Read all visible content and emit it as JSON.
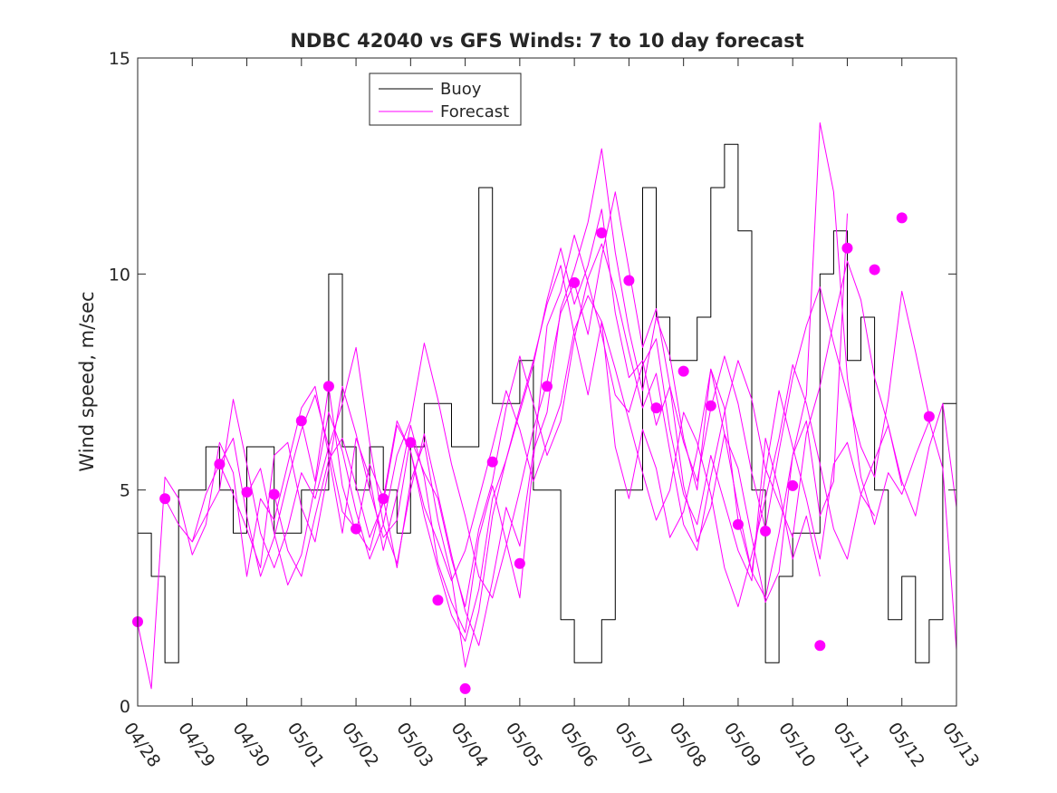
{
  "chart_data": {
    "type": "line",
    "title": "NDBC 42040 vs GFS Winds: 7 to 10 day forecast",
    "xlabel": "",
    "ylabel": "Wind speed, m/sec",
    "xlim": [
      "04/28",
      "05/13"
    ],
    "ylim": [
      0,
      15
    ],
    "x_ticks": [
      "04/28",
      "04/29",
      "04/30",
      "05/01",
      "05/02",
      "05/03",
      "05/04",
      "05/05",
      "05/06",
      "05/07",
      "05/08",
      "05/09",
      "05/10",
      "05/11",
      "05/12",
      "05/13"
    ],
    "y_ticks": [
      0,
      5,
      10,
      15
    ],
    "grid": false,
    "legend_position": "top-center",
    "legend": [
      {
        "name": "Buoy",
        "color": "#000000"
      },
      {
        "name": "Forecast",
        "color": "#ff00ff"
      }
    ],
    "forecast_markers": {
      "x": [
        0,
        0.5,
        1.5,
        2,
        2.5,
        3,
        3.5,
        4,
        4.5,
        5,
        5.5,
        6,
        6.5,
        7,
        7.5,
        8,
        8.5,
        9,
        9.5,
        10,
        10.5,
        11,
        11.5,
        12,
        12.5,
        13,
        13.5,
        14,
        14.5
      ],
      "values": [
        1.95,
        4.8,
        5.6,
        4.95,
        4.9,
        6.6,
        7.4,
        4.1,
        4.8,
        6.1,
        2.45,
        0.4,
        5.65,
        3.3,
        7.4,
        9.8,
        10.95,
        9.85,
        6.9,
        7.75,
        6.95,
        4.2,
        4.05,
        5.1,
        1.4,
        10.6,
        10.1,
        11.3,
        6.7
      ]
    },
    "series": [
      {
        "name": "Buoy",
        "x": [
          0,
          0.25,
          0.5,
          0.75,
          1,
          1.25,
          1.5,
          1.75,
          2,
          2.25,
          2.5,
          2.75,
          3,
          3.25,
          3.5,
          3.75,
          4,
          4.25,
          4.5,
          4.75,
          5,
          5.25,
          5.5,
          5.75,
          6,
          6.25,
          6.5,
          6.75,
          7,
          7.25,
          7.5,
          7.75,
          8,
          8.25,
          8.5,
          8.75,
          9,
          9.25,
          9.5,
          9.75,
          10,
          10.25,
          10.5,
          10.75,
          11,
          11.25,
          11.5,
          11.75,
          12,
          12.25,
          12.5,
          12.75,
          13,
          13.25,
          13.5,
          13.75,
          14,
          14.25,
          14.5,
          14.75,
          15
        ],
        "values": [
          4,
          3,
          1,
          5,
          5,
          6,
          5,
          4,
          6,
          6,
          4,
          4,
          5,
          5,
          10,
          6,
          5,
          6,
          5,
          4,
          6,
          7,
          7,
          6,
          6,
          12,
          7,
          7,
          8,
          5,
          5,
          2,
          1,
          1,
          2,
          5,
          5,
          12,
          9,
          8,
          8,
          9,
          12,
          13,
          11,
          5,
          1,
          3,
          4,
          4,
          10,
          11,
          8,
          9,
          5,
          2,
          3,
          1,
          2,
          7,
          4
        ]
      },
      {
        "name": "",
        "x": [
          0,
          0.25,
          0.5,
          0.75,
          1,
          1.25,
          1.5,
          1.75,
          2,
          2.25,
          2.5,
          2.75,
          3,
          3.25,
          3.5,
          3.75,
          4,
          4.25,
          4.5,
          4.75,
          5,
          5.25,
          5.5,
          5.75,
          6,
          6.25,
          6.5,
          6.75,
          7,
          7.25,
          7.5,
          7.75,
          8,
          8.25,
          8.5,
          8.75,
          9,
          9.25,
          9.5,
          9.75,
          10,
          10.25,
          10.5,
          10.75,
          11,
          11.25,
          11.5,
          11.75,
          12,
          12.25,
          12.5
        ],
        "values": [
          1.9,
          0.4,
          5.3,
          4.8,
          3.5,
          4.2,
          6.1,
          5.4,
          3.0,
          4.8,
          4.3,
          5.6,
          6.9,
          7.4,
          5.8,
          4.0,
          6.2,
          5.3,
          3.6,
          4.9,
          6.5,
          5.3,
          3.3,
          2.4,
          1.7,
          3.9,
          5.1,
          3.8,
          2.5,
          5.7,
          8.8,
          9.6,
          10.9,
          9.8,
          8.6,
          7.2,
          6.8,
          7.9,
          8.5,
          6.4,
          4.9,
          4.2,
          5.8,
          4.7,
          3.6,
          2.9,
          6.2,
          5.0,
          3.4,
          4.4,
          3.0
        ]
      },
      {
        "name": "",
        "x": [
          0.5,
          0.75,
          1,
          1.25,
          1.5,
          1.75,
          2,
          2.25,
          2.5,
          2.75,
          3,
          3.25,
          3.5,
          3.75,
          4,
          4.25,
          4.5,
          4.75,
          5,
          5.25,
          5.5,
          5.75,
          6,
          6.25,
          6.5,
          6.75,
          7,
          7.25,
          7.5,
          7.75,
          8,
          8.25,
          8.5,
          8.75,
          9,
          9.25,
          9.5,
          9.75,
          10,
          10.25,
          10.5,
          10.75,
          11,
          11.25,
          11.5,
          11.75,
          12,
          12.25,
          12.5,
          12.75,
          13
        ],
        "values": [
          4.8,
          4.2,
          3.8,
          4.9,
          5.6,
          6.2,
          4.4,
          3.0,
          3.9,
          5.2,
          6.4,
          7.2,
          6.0,
          4.5,
          4.1,
          3.6,
          4.8,
          6.6,
          5.9,
          4.4,
          3.2,
          2.1,
          1.5,
          2.7,
          4.8,
          5.7,
          6.8,
          7.9,
          9.4,
          10.6,
          9.3,
          10.2,
          11.5,
          9.1,
          7.6,
          8.0,
          6.5,
          7.4,
          5.1,
          3.8,
          4.6,
          6.3,
          5.5,
          3.9,
          2.4,
          3.1,
          5.8,
          6.6,
          4.4,
          5.2,
          11.4
        ]
      },
      {
        "name": "",
        "x": [
          1,
          1.25,
          1.5,
          1.75,
          2,
          2.25,
          2.5,
          2.75,
          3,
          3.25,
          3.5,
          3.75,
          4,
          4.25,
          4.5,
          4.75,
          5,
          5.25,
          5.5,
          5.75,
          6,
          6.25,
          6.5,
          6.75,
          7,
          7.25,
          7.5,
          7.75,
          8,
          8.25,
          8.5,
          8.75,
          9,
          9.25,
          9.5,
          9.75,
          10,
          10.25,
          10.5,
          10.75,
          11,
          11.25,
          11.5,
          11.75,
          12,
          12.25,
          12.5,
          12.75,
          13,
          13.25,
          13.5
        ],
        "values": [
          3.8,
          4.4,
          5.0,
          7.1,
          5.6,
          4.0,
          3.2,
          4.1,
          5.4,
          4.8,
          6.0,
          7.0,
          8.3,
          6.1,
          4.2,
          3.3,
          5.0,
          6.3,
          4.9,
          3.5,
          2.2,
          1.4,
          2.9,
          4.6,
          3.7,
          5.9,
          6.8,
          9.2,
          10.1,
          11.2,
          12.9,
          10.5,
          8.7,
          7.3,
          9.0,
          8.1,
          6.2,
          5.0,
          7.8,
          6.9,
          4.3,
          3.1,
          5.4,
          7.3,
          6.0,
          4.8,
          3.4,
          5.6,
          6.1,
          4.9,
          4.4
        ]
      },
      {
        "name": "",
        "x": [
          1.5,
          1.75,
          2,
          2.25,
          2.5,
          2.75,
          3,
          3.25,
          3.5,
          3.75,
          4,
          4.25,
          4.5,
          4.75,
          5,
          5.25,
          5.5,
          5.75,
          6,
          6.25,
          6.5,
          6.75,
          7,
          7.25,
          7.5,
          7.75,
          8,
          8.25,
          8.5,
          8.75,
          9,
          9.25,
          9.5,
          9.75,
          10,
          10.25,
          10.5,
          10.75,
          11,
          11.25,
          11.5,
          11.75,
          12,
          12.25,
          12.5,
          12.75,
          13,
          13.25,
          13.5,
          13.75,
          14
        ],
        "values": [
          5.6,
          4.9,
          4.1,
          3.2,
          5.8,
          6.1,
          4.6,
          3.8,
          5.5,
          7.4,
          6.3,
          5.0,
          3.9,
          4.3,
          6.2,
          5.4,
          4.8,
          3.4,
          2.3,
          4.1,
          5.2,
          6.9,
          8.1,
          7.0,
          5.8,
          6.6,
          8.5,
          9.9,
          10.7,
          9.6,
          8.2,
          6.9,
          7.7,
          5.9,
          4.2,
          3.6,
          5.3,
          6.8,
          8.0,
          7.1,
          5.5,
          4.7,
          3.9,
          6.3,
          7.4,
          8.9,
          10.3,
          9.4,
          7.6,
          6.5,
          5.1
        ]
      },
      {
        "name": "",
        "x": [
          2,
          2.25,
          2.5,
          2.75,
          3,
          3.25,
          3.5,
          3.75,
          4,
          4.25,
          4.5,
          4.75,
          5,
          5.25,
          5.5,
          5.75,
          6,
          6.25,
          6.5,
          6.75,
          7,
          7.25,
          7.5,
          7.75,
          8,
          8.25,
          8.5,
          8.75,
          9,
          9.25,
          9.5,
          9.75,
          10,
          10.25,
          10.5,
          10.75,
          11,
          11.25,
          11.5,
          11.75,
          12,
          12.25,
          12.5,
          12.75,
          13,
          13.25,
          13.5,
          13.75,
          14,
          14.25,
          14.5
        ],
        "values": [
          4.9,
          5.5,
          4.0,
          2.8,
          3.5,
          5.1,
          6.8,
          5.9,
          4.5,
          3.4,
          4.2,
          5.8,
          6.6,
          8.4,
          7.1,
          5.6,
          4.4,
          3.0,
          2.5,
          3.7,
          5.0,
          6.4,
          7.5,
          9.1,
          9.8,
          8.6,
          10.4,
          11.9,
          10.1,
          8.3,
          9.2,
          7.4,
          6.1,
          5.2,
          6.9,
          8.1,
          7.0,
          5.4,
          4.1,
          5.9,
          7.6,
          8.8,
          9.7,
          8.4,
          7.2,
          6.0,
          5.3,
          7.1,
          9.6,
          8.2,
          6.7
        ]
      },
      {
        "name": "",
        "x": [
          2.5,
          2.75,
          3,
          3.25,
          3.5,
          3.75,
          4,
          4.25,
          4.5,
          4.75,
          5,
          5.25,
          5.5,
          5.75,
          6,
          6.25,
          6.5,
          6.75,
          7,
          7.25,
          7.5,
          7.75,
          8,
          8.25,
          8.5,
          8.75,
          9,
          9.25,
          9.5,
          9.75,
          10,
          10.25,
          10.5,
          10.75,
          11,
          11.25,
          11.5,
          11.75,
          12,
          12.25,
          12.5,
          12.75,
          13,
          13.25,
          13.5,
          13.75,
          14,
          14.25,
          14.5,
          14.75,
          15
        ],
        "values": [
          4.9,
          3.6,
          3.0,
          4.4,
          5.7,
          6.2,
          5.1,
          3.9,
          4.7,
          6.5,
          5.9,
          4.6,
          3.8,
          2.9,
          3.6,
          4.8,
          6.0,
          7.3,
          6.4,
          5.2,
          6.1,
          7.0,
          8.7,
          9.5,
          8.9,
          7.8,
          6.6,
          5.4,
          4.3,
          5.0,
          6.8,
          6.1,
          4.9,
          3.2,
          2.3,
          3.5,
          4.8,
          6.2,
          7.9,
          7.0,
          5.6,
          4.1,
          3.4,
          4.9,
          5.7,
          6.5,
          5.2,
          4.4,
          6.0,
          7.0,
          4.6
        ]
      },
      {
        "name": "",
        "x": [
          3,
          3.25,
          3.5,
          3.75,
          4,
          4.25,
          4.5,
          4.75,
          5,
          5.25,
          5.5,
          5.75,
          6,
          6.25,
          6.5,
          6.75,
          7,
          7.25,
          7.5,
          7.75,
          8,
          8.25,
          8.5,
          8.75,
          9,
          9.25,
          9.5,
          9.75,
          10,
          10.25,
          10.5,
          10.75,
          11,
          11.25,
          11.5,
          11.75,
          12,
          12.25,
          12.5,
          12.75,
          13,
          13.25,
          13.5,
          13.75,
          14,
          14.25,
          14.5,
          14.75,
          15
        ],
        "values": [
          6.6,
          5.2,
          7.4,
          5.1,
          4.0,
          5.6,
          4.8,
          3.2,
          5.2,
          6.1,
          4.3,
          3.0,
          0.9,
          2.2,
          4.4,
          5.7,
          6.9,
          8.0,
          9.3,
          10.2,
          8.6,
          7.2,
          8.9,
          6.0,
          4.8,
          6.4,
          5.5,
          3.9,
          4.5,
          5.9,
          7.8,
          6.3,
          4.6,
          3.1,
          2.5,
          4.0,
          5.8,
          7.2,
          13.5,
          11.9,
          7.6,
          5.3,
          4.2,
          5.4,
          4.9,
          5.8,
          6.6,
          5.5,
          1.3
        ]
      }
    ]
  }
}
